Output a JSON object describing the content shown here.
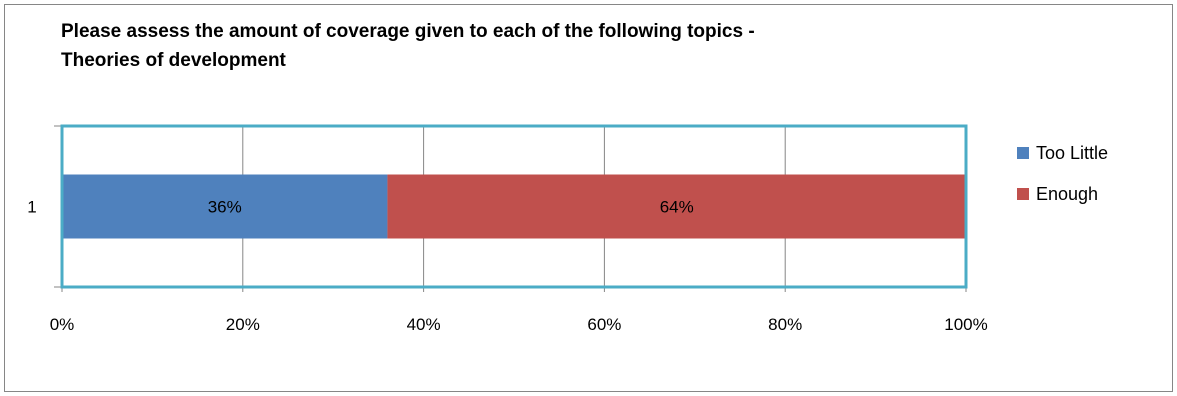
{
  "chart_data": {
    "type": "bar",
    "orientation": "horizontal",
    "stacked": true,
    "percent_stacked": true,
    "title": "Please assess the amount of coverage given to each of the following topics - Theories of development",
    "title_lines": [
      "Please assess the amount of coverage given to each of the following topics -",
      "Theories of development"
    ],
    "categories": [
      "1"
    ],
    "series": [
      {
        "name": "Too Little",
        "values": [
          36
        ],
        "label": "36%",
        "color": "#4F81BD"
      },
      {
        "name": "Enough",
        "values": [
          64
        ],
        "label": "64%",
        "color": "#C0504D"
      }
    ],
    "x_ticks": [
      "0%",
      "20%",
      "40%",
      "60%",
      "80%",
      "100%"
    ],
    "xlim": [
      0,
      100
    ],
    "grid": true,
    "legend_position": "right",
    "plot_border_color": "#4BACC6"
  }
}
